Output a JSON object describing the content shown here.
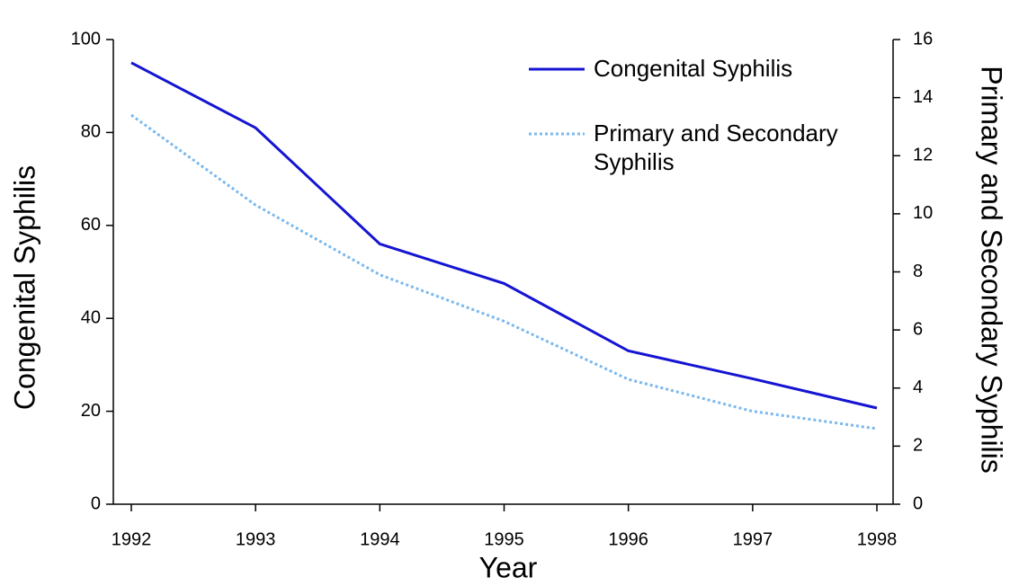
{
  "chart_data": {
    "type": "line",
    "xlabel": "Year",
    "ylabel": "Congenital Syphilis",
    "y2label": "Primary and Secondary Syphilis",
    "categories": [
      "1992",
      "1993",
      "1994",
      "1995",
      "1996",
      "1997",
      "1998"
    ],
    "series": [
      {
        "name": "Congenital Syphilis",
        "color": "#1414d2",
        "style": "solid",
        "values": [
          95,
          81,
          56,
          47.5,
          33,
          27,
          20.7
        ]
      },
      {
        "name": "Primary and Secondary Syphilis",
        "color": "#7ab8ee",
        "style": "dotted",
        "axis": "y2",
        "values": [
          13.4,
          10.3,
          7.9,
          6.3,
          4.3,
          3.2,
          2.6
        ]
      }
    ],
    "ylim": [
      0,
      100
    ],
    "yticks": [
      0,
      20,
      40,
      60,
      80,
      100
    ],
    "y2lim": [
      0,
      16
    ],
    "y2ticks": [
      0,
      2,
      4,
      6,
      8,
      10,
      12,
      14,
      16
    ],
    "legend": "upper right"
  }
}
